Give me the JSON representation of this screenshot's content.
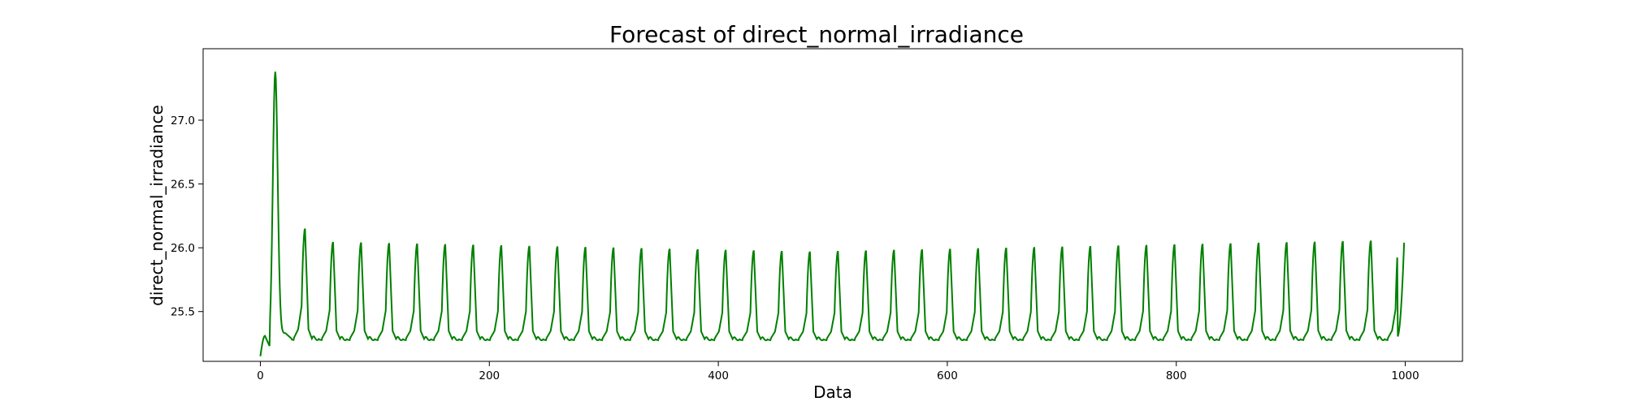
{
  "chart_data": {
    "type": "line",
    "title": "Forecast of direct_normal_irradiance",
    "xlabel": "Data",
    "ylabel": "direct_normal_irradiance",
    "xlim": [
      -50,
      1050
    ],
    "ylim": [
      25.11,
      27.56
    ],
    "x_ticks": [
      0,
      200,
      400,
      600,
      800,
      1000
    ],
    "x_tick_labels": [
      "0",
      "200",
      "400",
      "600",
      "800",
      "1000"
    ],
    "y_ticks": [
      25.5,
      26.0,
      26.5,
      27.0
    ],
    "y_tick_labels": [
      "25.5",
      "26.0",
      "26.5",
      "27.0"
    ],
    "grid": false,
    "series": [
      {
        "color": "#008000",
        "x_start": 0,
        "x_end": 999,
        "start_value": 25.15,
        "initial_bump": {
          "x": 4,
          "value": 25.31
        },
        "big_peak": {
          "x": 13,
          "value": 27.38
        },
        "period": 24.5,
        "first_periodic_peak": {
          "x": 39,
          "value": 26.15
        },
        "typical_peak_value_range": [
          25.96,
          26.06
        ],
        "typical_trough_value": 25.27,
        "last_value": 26.04
      }
    ]
  }
}
